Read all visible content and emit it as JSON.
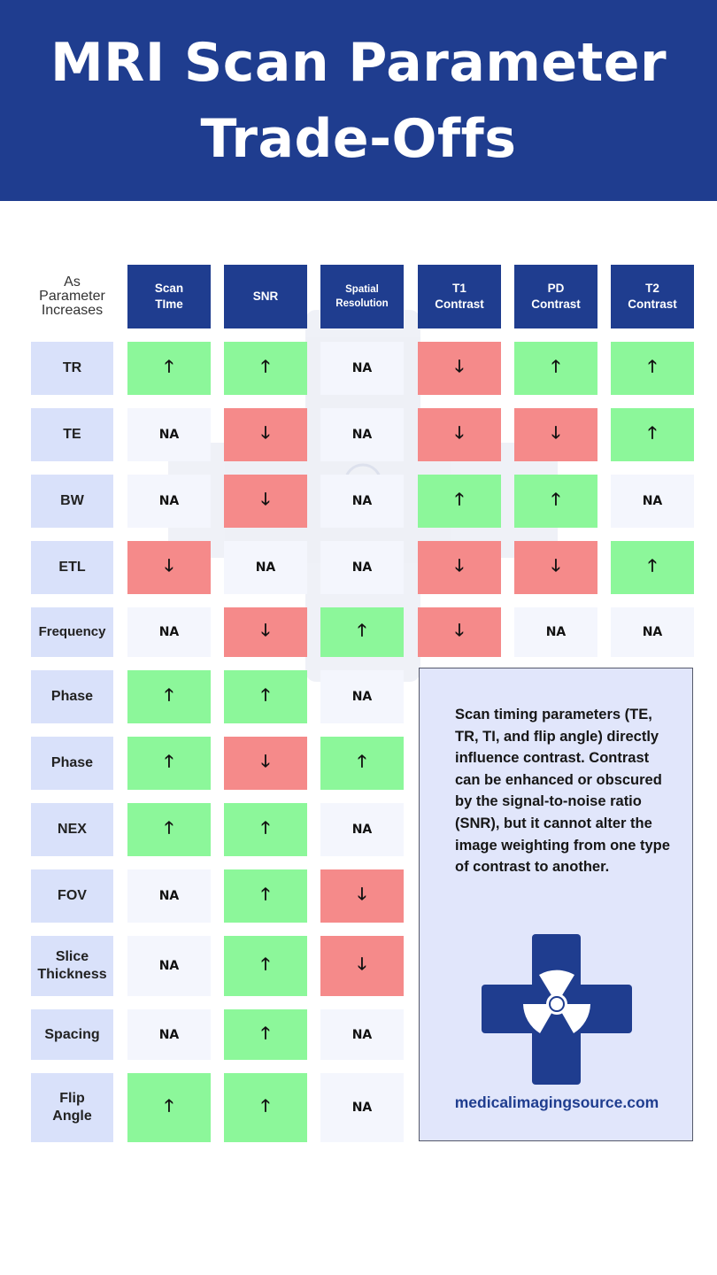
{
  "header": {
    "title_line1": "MRI Scan Parameter",
    "title_line2": "Trade-Offs"
  },
  "table": {
    "corner_label_lines": [
      "As",
      "Parameter",
      "Increases"
    ],
    "columns": [
      {
        "line1": "Scan",
        "line2": "TIme"
      },
      {
        "line1": "SNR",
        "line2": ""
      },
      {
        "line1": "Spatial",
        "line2": "Resolution"
      },
      {
        "line1": "T1",
        "line2": "Contrast"
      },
      {
        "line1": "PD",
        "line2": "Contrast"
      },
      {
        "line1": "T2",
        "line2": "Contrast"
      }
    ],
    "rows": [
      {
        "line1": "TR",
        "line2": "",
        "values": [
          "up",
          "up",
          "NA",
          "down",
          "up",
          "up"
        ]
      },
      {
        "line1": "TE",
        "line2": "",
        "values": [
          "NA",
          "down",
          "NA",
          "down",
          "down",
          "up"
        ]
      },
      {
        "line1": "BW",
        "line2": "",
        "values": [
          "NA",
          "down",
          "NA",
          "up",
          "up",
          "NA"
        ]
      },
      {
        "line1": "ETL",
        "line2": "",
        "values": [
          "down",
          "NA",
          "NA",
          "down",
          "down",
          "up"
        ]
      },
      {
        "line1": "Frequency",
        "line2": "",
        "values": [
          "NA",
          "down",
          "up",
          "down",
          "NA",
          "NA"
        ]
      },
      {
        "line1": "Phase",
        "line2": "",
        "values": [
          "up",
          "up",
          "NA"
        ]
      },
      {
        "line1": "Phase",
        "line2": "",
        "values": [
          "up",
          "down",
          "up"
        ]
      },
      {
        "line1": "NEX",
        "line2": "",
        "values": [
          "up",
          "up",
          "NA"
        ]
      },
      {
        "line1": "FOV",
        "line2": "",
        "values": [
          "NA",
          "up",
          "down"
        ]
      },
      {
        "line1": "Slice",
        "line2": "Thickness",
        "values": [
          "NA",
          "up",
          "down"
        ]
      },
      {
        "line1": "Spacing",
        "line2": "",
        "values": [
          "NA",
          "up",
          "NA"
        ]
      },
      {
        "line1": "Flip",
        "line2": "Angle",
        "values": [
          "up",
          "up",
          "NA"
        ]
      }
    ],
    "symbols": {
      "up": "🡑",
      "down": "🡓",
      "na": "NA"
    },
    "colors": {
      "up": "#8cf79a",
      "down": "#f58a8a",
      "na": "#f4f6fd",
      "row_header": "#d9e1fa",
      "col_header": "#1f3d8f"
    }
  },
  "note": {
    "text": "Scan timing parameters (TE, TR, TI, and flip angle) directly influence contrast. Contrast can be enhanced or obscured by the signal-to-noise ratio (SNR), but it cannot alter the image weighting from one type of contrast to another.",
    "website": "medicalimagingsource.com",
    "logo_icon": "medical-cross-radiation-icon"
  },
  "brand": {
    "primary": "#1f3d8f"
  }
}
